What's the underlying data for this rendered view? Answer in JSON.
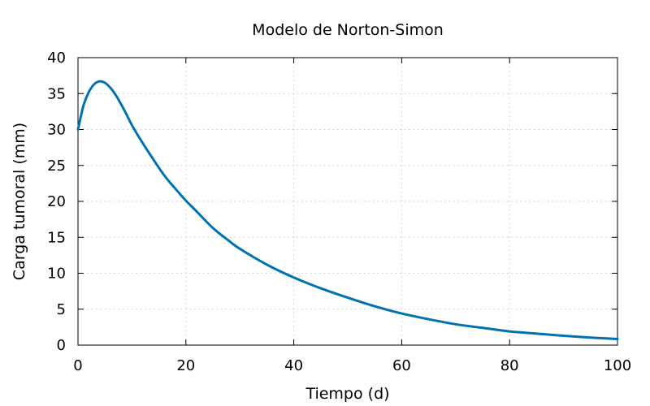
{
  "chart_data": {
    "type": "line",
    "title": "Modelo de Norton-Simon",
    "xlabel": "Tiempo (d)",
    "ylabel": "Carga tumoral (mm)",
    "xlim": [
      0,
      100
    ],
    "ylim": [
      0,
      40
    ],
    "xticks": [
      0,
      20,
      40,
      60,
      80,
      100
    ],
    "yticks": [
      0,
      5,
      10,
      15,
      20,
      25,
      30,
      35,
      40
    ],
    "grid": true,
    "legend": "none",
    "series": [
      {
        "color": "#0072b2",
        "x": [
          0,
          1,
          2,
          3,
          4,
          5,
          6,
          7,
          8,
          9,
          10,
          12,
          14,
          16,
          18,
          20,
          22,
          25,
          28,
          30,
          35,
          40,
          45,
          50,
          55,
          60,
          65,
          70,
          75,
          80,
          85,
          90,
          95,
          100
        ],
        "y": [
          30,
          33.3,
          35.2,
          36.3,
          36.7,
          36.5,
          35.8,
          34.8,
          33.5,
          32.1,
          30.6,
          28.1,
          25.8,
          23.6,
          21.8,
          20.1,
          18.6,
          16.3,
          14.5,
          13.4,
          11.2,
          9.4,
          7.9,
          6.6,
          5.4,
          4.4,
          3.6,
          2.9,
          2.4,
          1.9,
          1.6,
          1.3,
          1.05,
          0.85
        ]
      }
    ]
  }
}
